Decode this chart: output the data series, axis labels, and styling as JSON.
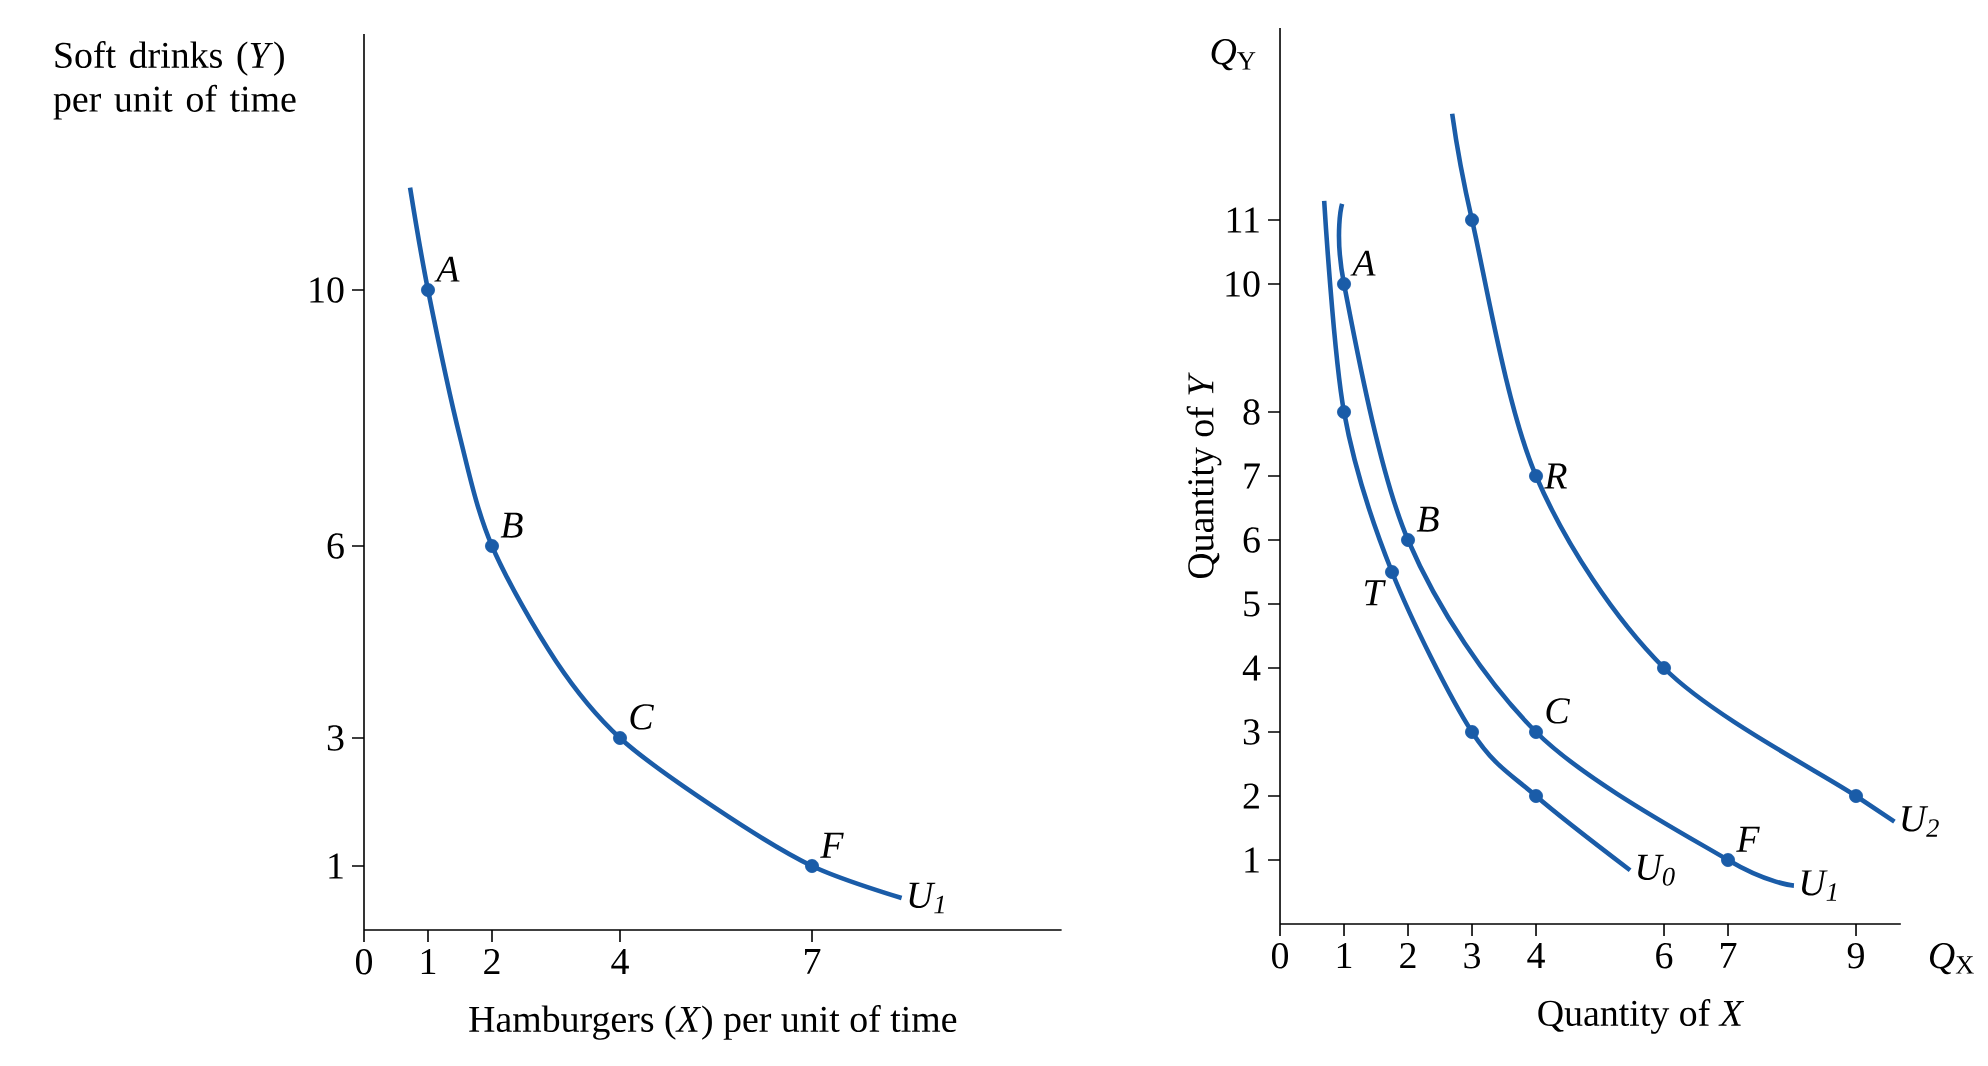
{
  "chart_data": [
    {
      "type": "line",
      "xlabel": "Hamburgers (*X*) per unit of time",
      "ylabel": "Soft drinks (*Y*) per unit of time",
      "xlim": [
        0,
        10.9
      ],
      "ylim": [
        0,
        14
      ],
      "xticks": [
        0,
        1,
        2,
        4,
        7
      ],
      "yticks": [
        1,
        3,
        6,
        10
      ],
      "series": [
        {
          "name": "U$_{1}$",
          "color": "#1a5ca8",
          "x": [
            0.72,
            1,
            1.5,
            2,
            3,
            4,
            5.5,
            7,
            8.4
          ],
          "values": [
            11.6,
            10,
            7.7,
            6,
            4.2,
            3,
            1.9,
            1,
            0.5
          ]
        },
        {
          "type": "scatter",
          "color": "#1a5ca8",
          "x": [
            1,
            2,
            4,
            7
          ],
          "values": [
            10,
            6,
            3,
            1
          ]
        }
      ],
      "annotations": [
        {
          "text": "A",
          "x": 1,
          "y": 10
        },
        {
          "text": "B",
          "x": 2,
          "y": 6
        },
        {
          "text": "C",
          "x": 4,
          "y": 3
        },
        {
          "text": "F",
          "x": 7,
          "y": 1
        }
      ]
    },
    {
      "type": "line",
      "xlabel": "Quantity of *X*",
      "ylabel": "Quantity of *Y*",
      "xlim": [
        0,
        9.7
      ],
      "ylim": [
        0,
        14
      ],
      "xticks": [
        0,
        1,
        2,
        3,
        4,
        6,
        7,
        9
      ],
      "yticks": [
        1,
        2,
        3,
        4,
        5,
        6,
        7,
        8,
        10,
        11
      ],
      "series": [
        {
          "name": "U$_{0}$",
          "color": "#1a5ca8",
          "x": [
            0.69,
            1,
            1.75,
            3,
            4,
            5.47
          ],
          "values": [
            11.3,
            8,
            5.5,
            3,
            2,
            0.84
          ]
        },
        {
          "name": "U$_{1}$",
          "color": "#1a5ca8",
          "x": [
            0.97,
            1,
            2,
            4,
            7,
            8.03
          ],
          "values": [
            11.25,
            10,
            6,
            3,
            1,
            0.6
          ]
        },
        {
          "name": "U$_{2}$",
          "color": "#1a5ca8",
          "x": [
            2.69,
            3,
            4,
            6,
            9,
            9.6
          ],
          "values": [
            12.66,
            11,
            7,
            4,
            2,
            1.6
          ]
        },
        {
          "type": "scatter",
          "color": "#1a5ca8",
          "x": [
            1,
            1.75,
            3,
            4,
            1,
            2,
            4,
            7,
            3,
            4,
            6,
            9
          ],
          "values": [
            8,
            5.5,
            3,
            2,
            10,
            6,
            3,
            1,
            11,
            7,
            4,
            2
          ]
        }
      ],
      "annotations": [
        {
          "text": "A",
          "x": 1,
          "y": 10
        },
        {
          "text": "B",
          "x": 2,
          "y": 6
        },
        {
          "text": "C",
          "x": 4,
          "y": 3
        },
        {
          "text": "F",
          "x": 7,
          "y": 1
        },
        {
          "text": "R",
          "x": 4,
          "y": 7
        },
        {
          "text": "T",
          "x": 1.75,
          "y": 5.5
        },
        "*Q*$_{Y}$",
        "*Q*$_{X}$"
      ]
    }
  ]
}
